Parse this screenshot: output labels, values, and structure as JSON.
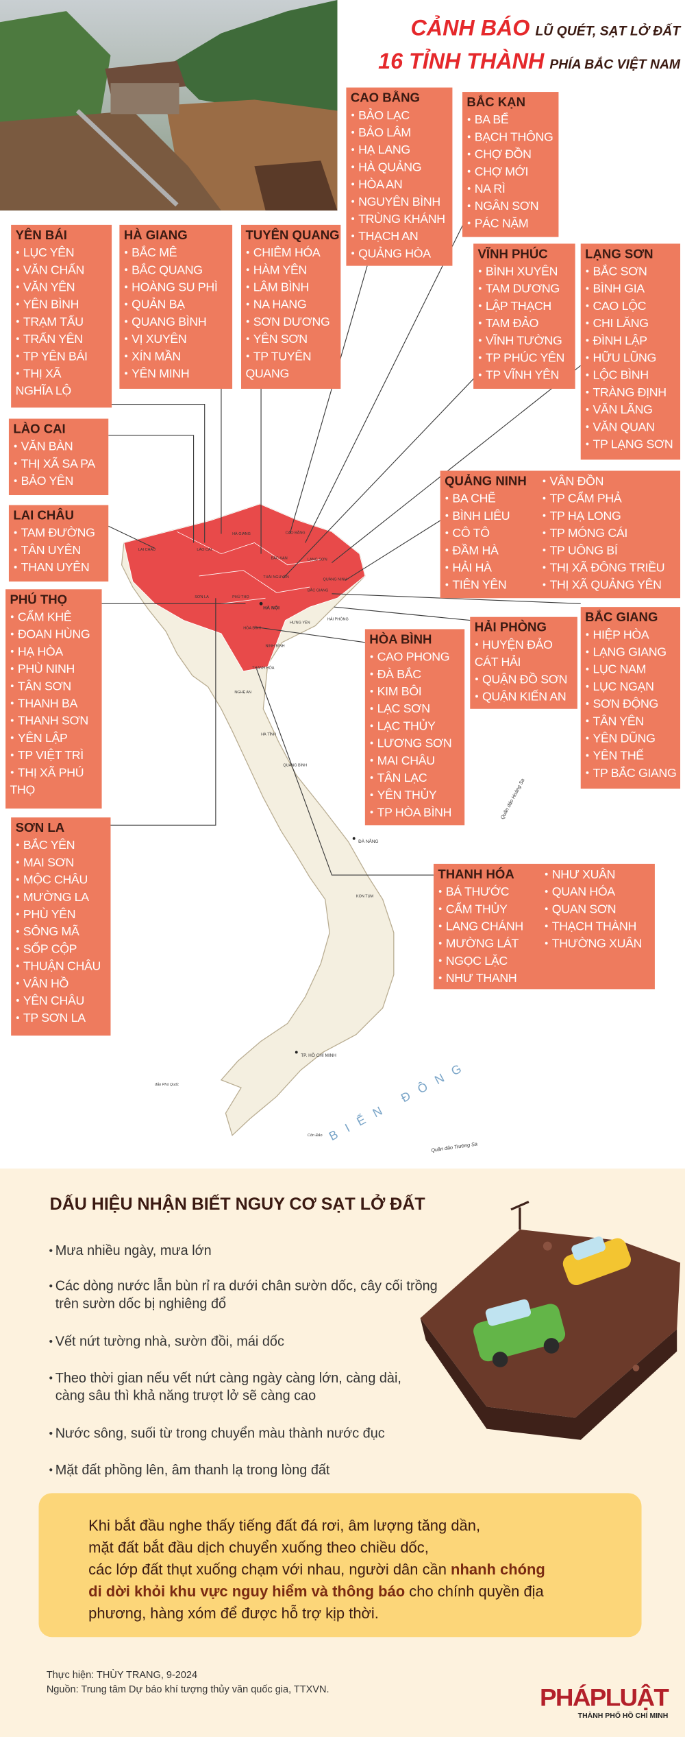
{
  "header": {
    "title_1": "CẢNH BÁO",
    "title_1b": "LŨ QUÉT, SẠT LỞ ĐẤT",
    "title_2": "16 TỈNH THÀNH",
    "title_2b": "PHÍA BẮC VIỆT NAM"
  },
  "provinces": [
    {
      "name": "CAO BẰNG",
      "districts": [
        "BẢO LẠC",
        "BẢO LÂM",
        "HẠ LANG",
        "HÀ QUẢNG",
        "HÒA AN",
        "NGUYÊN BÌNH",
        "TRÙNG KHÁNH",
        "THẠCH AN",
        "QUẢNG HÒA"
      ]
    },
    {
      "name": "BẮC KẠN",
      "districts": [
        "BA BỂ",
        "BẠCH THÔNG",
        "CHỢ ĐỒN",
        "CHỢ MỚI",
        "NA RÌ",
        "NGÂN SƠN",
        "PÁC NẶM"
      ]
    },
    {
      "name": "YÊN BÁI",
      "districts": [
        "LỤC YÊN",
        "VĂN CHẤN",
        "VĂN YÊN",
        "YÊN BÌNH",
        "TRẠM TẤU",
        "TRẤN YÊN",
        "TP YÊN BÁI",
        [
          "THỊ XÃ",
          "NGHĨA LỘ"
        ]
      ]
    },
    {
      "name": "HÀ GIANG",
      "districts": [
        "BẮC MÊ",
        "BẮC QUANG",
        "HOÀNG SU PHÌ",
        "QUẢN BẠ",
        "QUANG BÌNH",
        "VỊ XUYÊN",
        "XÍN MẦN",
        "YÊN MINH"
      ]
    },
    {
      "name": "TUYÊN QUANG",
      "districts": [
        "CHIÊM HÓA",
        "HÀM YÊN",
        "LÂM BÌNH",
        "NA HANG",
        "SƠN DƯƠNG",
        "YÊN SƠN",
        [
          "TP TUYÊN",
          "QUANG"
        ]
      ]
    },
    {
      "name": "VĨNH PHÚC",
      "districts": [
        "BÌNH XUYÊN",
        "TAM DƯƠNG",
        "LẬP THẠCH",
        "TAM ĐẢO",
        "VĨNH TƯỜNG",
        "TP PHÚC YÊN",
        "TP VĨNH YÊN"
      ]
    },
    {
      "name": "LẠNG SƠN",
      "districts": [
        "BẮC SƠN",
        "BÌNH GIA",
        "CAO LỘC",
        "CHI LĂNG",
        "ĐÌNH LẬP",
        "HỮU LŨNG",
        "LỘC BÌNH",
        "TRÀNG ĐỊNH",
        "VĂN LÃNG",
        "VĂN QUAN",
        "TP LẠNG SƠN"
      ]
    },
    {
      "name": "LÀO CAI",
      "districts": [
        "VĂN BÀN",
        "THỊ XÃ SA PA",
        "BẢO YÊN"
      ]
    },
    {
      "name": "LAI CHÂU",
      "districts": [
        "TAM ĐƯỜNG",
        "TÂN UYÊN",
        "THAN UYÊN"
      ]
    },
    {
      "name": "QUẢNG NINH",
      "districts": [
        "BA CHẼ",
        "BÌNH LIÊU",
        "CÔ TÔ",
        "ĐẦM HÀ",
        "HẢI HÀ",
        "TIÊN YÊN",
        "VÂN ĐỒN",
        "TP CẨM PHẢ",
        "TP HẠ LONG",
        "TP MÓNG CÁI",
        "TP UÔNG BÍ",
        "THỊ XÃ ĐÔNG TRIỀU",
        "THỊ XÃ QUẢNG YÊN"
      ]
    },
    {
      "name": "PHÚ THỌ",
      "districts": [
        "CẨM KHÊ",
        "ĐOAN HÙNG",
        "HẠ HÒA",
        "PHÙ NINH",
        "TÂN SƠN",
        "THANH BA",
        "THANH SƠN",
        "YÊN LẬP",
        "TP VIỆT TRÌ",
        [
          "THỊ XÃ PHÚ",
          "THỌ"
        ]
      ]
    },
    {
      "name": "HẢI PHÒNG",
      "districts": [
        [
          "HUYỆN ĐẢO",
          "CÁT HẢI"
        ],
        "QUẬN ĐỒ SƠN",
        "QUẬN KIẾN AN"
      ]
    },
    {
      "name": "BẮC GIANG",
      "districts": [
        "HIỆP HÒA",
        "LẠNG GIANG",
        "LỤC NAM",
        "LỤC NGẠN",
        "SƠN ĐỘNG",
        "TÂN YÊN",
        "YÊN DŨNG",
        "YÊN THẾ",
        "TP BẮC GIANG"
      ]
    },
    {
      "name": "HÒA BÌNH",
      "districts": [
        "CAO PHONG",
        "ĐÀ BẮC",
        "KIM BÔI",
        "LẠC SƠN",
        "LẠC THỦY",
        "LƯƠNG SƠN",
        "MAI CHÂU",
        "TÂN LẠC",
        "YÊN THỦY",
        "TP HÒA BÌNH"
      ]
    },
    {
      "name": "SƠN LA",
      "districts": [
        "BẮC YÊN",
        "MAI SƠN",
        "MỘC CHÂU",
        "MƯỜNG LA",
        "PHÙ YÊN",
        "SÔNG MÃ",
        "SỐP CỘP",
        "THUẬN CHÂU",
        "VÂN HỒ",
        "YÊN CHÂU",
        "TP SƠN LA"
      ]
    },
    {
      "name": "THANH HÓA",
      "districts": [
        "BÁ THƯỚC",
        "CẨM THỦY",
        "LANG CHÁNH",
        "MƯỜNG LÁT",
        "NGỌC LẶC",
        "NHƯ THANH",
        "NHƯ XUÂN",
        "QUAN HÓA",
        "QUAN SƠN",
        "THẠCH THÀNH",
        "THƯỜNG XUÂN"
      ]
    }
  ],
  "map_labels": [
    "HÀ NỘI",
    "LAI CHÂU",
    "LÀO CAI",
    "HÀ GIANG",
    "CAO BẰNG",
    "BẮC KẠN",
    "LẠNG SƠN",
    "THÁI NGUYÊN",
    "QUẢNG NINH",
    "BẮC GIANG",
    "SƠN LA",
    "PHÚ THỌ",
    "HƯNG YÊN",
    "HẢI PHÒNG",
    "HÒA BÌNH",
    "NINH BÌNH",
    "THANH HÓA",
    "NGHỆ AN",
    "HÀ TĨNH",
    "QUẢNG BÌNH",
    "ĐÀ NẴNG",
    "KON TUM",
    "TP. HỒ CHÍ MINH",
    "Côn Đảo",
    "đảo Phú Quốc",
    "Quần đảo Hoàng Sa",
    "Quần đảo Trường Sa",
    "BIỂN ĐÔNG"
  ],
  "signs": {
    "title": "DẤU HIỆU NHẬN BIẾT NGUY CƠ SẠT LỞ ĐẤT",
    "items": [
      [
        "Mưa nhiều ngày, mưa lớn"
      ],
      [
        "Các dòng nước lẫn bùn rỉ ra dưới chân sườn dốc, cây cối trồng",
        "trên sườn dốc bị nghiêng đổ"
      ],
      [
        "Vết nứt tường nhà, sườn đồi, mái dốc"
      ],
      [
        "Theo thời gian nếu vết nứt càng ngày càng lớn, càng dài,",
        "càng sâu thì khả năng trượt lở sẽ càng cao"
      ],
      [
        "Nước sông, suối từ trong chuyển màu thành nước đục"
      ],
      [
        "Mặt đất phồng lên, âm thanh lạ trong lòng đất"
      ]
    ]
  },
  "note": {
    "lines": [
      [
        {
          "text": "Khi bắt đầu nghe thấy tiếng đất đá rơi, âm lượng tăng dần,",
          "bold": false
        }
      ],
      [
        {
          "text": "mặt đất bắt đầu dịch chuyển xuống theo chiều dốc,",
          "bold": false
        }
      ],
      [
        {
          "text": "các lớp đất thụt xuống chạm với nhau, người dân cần ",
          "bold": false
        },
        {
          "text": "nhanh chóng",
          "bold": true
        }
      ],
      [
        {
          "text": "di dời khỏi khu vực nguy hiểm và thông báo",
          "bold": true
        },
        {
          "text": " cho chính quyền địa",
          "bold": false
        }
      ],
      [
        {
          "text": "phương, hàng xóm để được hỗ trợ kịp thời.",
          "bold": false
        }
      ]
    ]
  },
  "footer": {
    "credit": "Thực hiện: THÙY TRANG, 9-2024",
    "source": "Nguồn:  Trung tâm Dự báo khí tượng thủy văn quốc gia, TTXVN.",
    "logo": "PHÁPLUẬT",
    "logo_sub": "THÀNH PHỐ HỒ CHÍ MINH"
  }
}
